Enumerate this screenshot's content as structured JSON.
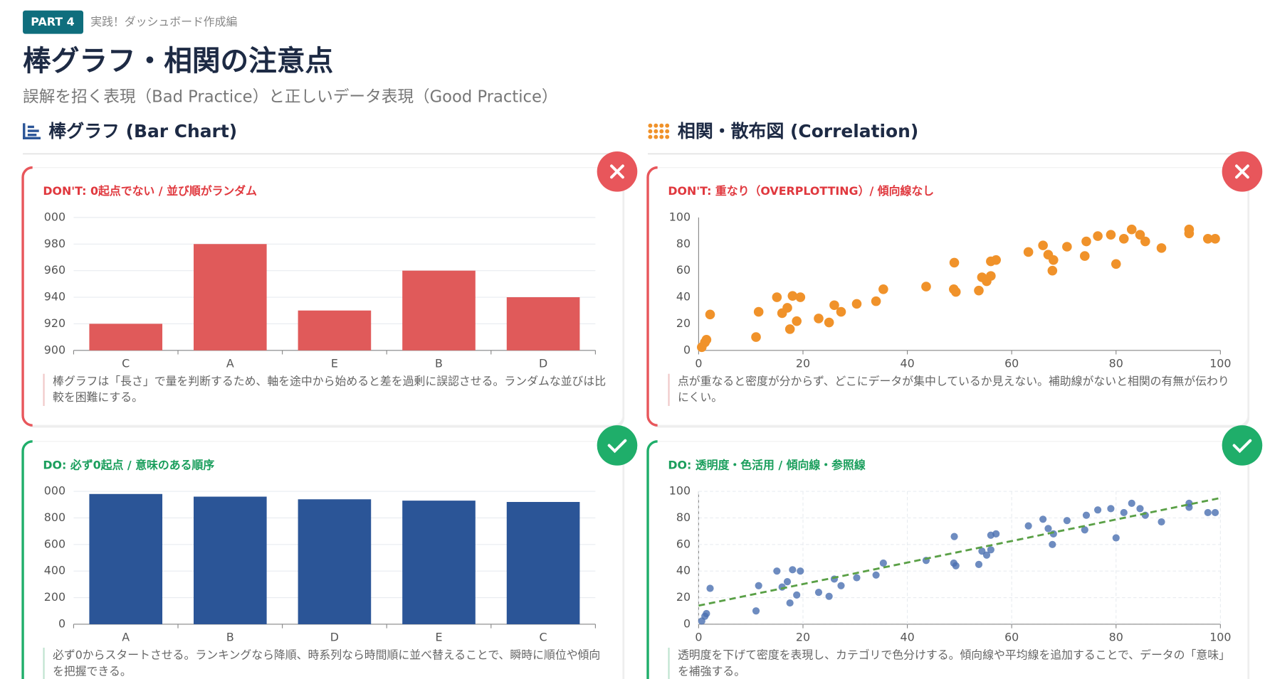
{
  "header": {
    "badge": "PART 4",
    "section": "実践！ダッシュボード作成編",
    "title": "棒グラフ・相関の注意点",
    "subtitle": "誤解を招く表現（Bad Practice）と正しいデータ表現（Good Practice）"
  },
  "columns": [
    {
      "heading": "棒グラフ (Bar Chart)"
    },
    {
      "heading": "相関・散布図 (Correlation)"
    }
  ],
  "chart_data": [
    {
      "type": "bar",
      "title": "DON'T: 0起点でない / 並び順がランダム",
      "note": "棒グラフは「長さ」で量を判断するため、軸を途中から始めると差を過剰に誤認させる。ランダムな並びは比較を困難にする。",
      "categories": [
        "C",
        "A",
        "E",
        "B",
        "D"
      ],
      "values": [
        920,
        980,
        930,
        960,
        940
      ],
      "color": "#e05a5a",
      "ylim": [
        900,
        1000
      ],
      "yticks": [
        900,
        920,
        940,
        960,
        980,
        {
          "value": 1000,
          "label": "000"
        }
      ],
      "grid": true
    },
    {
      "type": "scatter",
      "title": "DON'T: 重なり（OVERPLOTTING）/ 傾向線なし",
      "note": "点が重なると密度が分からず、どこにデータが集中しているか見えない。補助線がないと相関の有無が伝わりにくい。",
      "x": [
        0.6,
        1.2,
        1.5,
        2.2,
        11,
        11.5,
        15,
        16,
        17,
        17.5,
        18,
        18.8,
        19.5,
        23,
        25,
        26,
        27.3,
        30.3,
        34,
        35.4,
        43.6,
        48.9,
        49.3,
        49,
        53.7,
        54.3,
        55.2,
        56,
        56,
        57,
        63.2,
        66,
        67,
        68,
        67.8,
        70.6,
        74,
        74.3,
        76.5,
        79,
        80,
        81.5,
        83,
        84.6,
        85.6,
        88.7,
        94,
        94,
        97.6,
        99
      ],
      "values": [
        2.4,
        6,
        8,
        27,
        10,
        29,
        40,
        28,
        32,
        16,
        41,
        22,
        40,
        24,
        21,
        34,
        29,
        35,
        37,
        46,
        48,
        46,
        44,
        66,
        45,
        55,
        52,
        56,
        67,
        68,
        74,
        79,
        72,
        68,
        60,
        78,
        71,
        82,
        86,
        87,
        65,
        84,
        91,
        87,
        82,
        77,
        91,
        88,
        84,
        84
      ],
      "color": "#f0922a",
      "xlim": [
        0,
        100
      ],
      "xticks": [
        0,
        20,
        40,
        60,
        80,
        100
      ],
      "ylim": [
        0,
        100
      ],
      "yticks": [
        0,
        20,
        40,
        60,
        80,
        100
      ],
      "grid": false
    },
    {
      "type": "bar",
      "title": "DO: 必ず0起点 / 意味のある順序",
      "note": "必ず0からスタートさせる。ランキングなら降順、時系列なら時間順に並べ替えることで、瞬時に順位や傾向を把握できる。",
      "categories": [
        "A",
        "B",
        "D",
        "E",
        "C"
      ],
      "values": [
        980,
        960,
        940,
        930,
        920
      ],
      "color": "#2b5597",
      "ylim": [
        0,
        1000
      ],
      "yticks": [
        0,
        200,
        400,
        600,
        800,
        {
          "value": 1000,
          "label": "000"
        }
      ],
      "grid": true
    },
    {
      "type": "scatter",
      "title": "DO: 透明度・色活用 / 傾向線・参照線",
      "note": "透明度を下げて密度を表現し、カテゴリで色分けする。傾向線や平均線を追加することで、データの「意味」を補強する。",
      "x": [
        0.6,
        1.2,
        1.5,
        2.2,
        11,
        11.5,
        15,
        16,
        17,
        17.5,
        18,
        18.8,
        19.5,
        23,
        25,
        26,
        27.3,
        30.3,
        34,
        35.4,
        43.6,
        48.9,
        49.3,
        49,
        53.7,
        54.3,
        55.2,
        56,
        56,
        57,
        63.2,
        66,
        67,
        68,
        67.8,
        70.6,
        74,
        74.3,
        76.5,
        79,
        80,
        81.5,
        83,
        84.6,
        85.6,
        88.7,
        94,
        94,
        97.6,
        99
      ],
      "values": [
        2.4,
        6,
        8,
        27,
        10,
        29,
        40,
        28,
        32,
        16,
        41,
        22,
        40,
        24,
        21,
        34,
        29,
        35,
        37,
        46,
        48,
        46,
        44,
        66,
        45,
        55,
        52,
        56,
        67,
        68,
        74,
        79,
        72,
        68,
        60,
        78,
        71,
        82,
        86,
        87,
        65,
        84,
        91,
        87,
        82,
        77,
        91,
        88,
        84,
        84
      ],
      "color": "#4a6fb0",
      "xlim": [
        0,
        100
      ],
      "xticks": [
        0,
        20,
        40,
        60,
        80,
        100
      ],
      "ylim": [
        0,
        100
      ],
      "yticks": [
        0,
        20,
        40,
        60,
        80,
        100
      ],
      "grid": true,
      "trendline": {
        "color": "#5aa046",
        "x": [
          0,
          100
        ],
        "y": [
          14,
          95
        ]
      }
    }
  ]
}
